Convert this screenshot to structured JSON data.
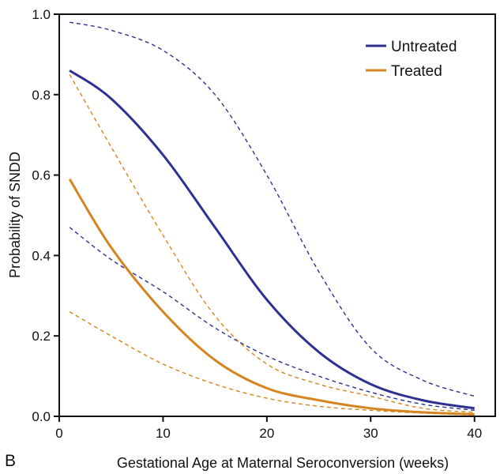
{
  "panel_label": "B",
  "chart_data": {
    "type": "line",
    "title": "",
    "xlabel": "Gestational Age at Maternal Seroconversion (weeks)",
    "ylabel": "Probability of SNDD",
    "xlim": [
      0,
      42
    ],
    "ylim": [
      0,
      1.0
    ],
    "xticks": [
      0,
      10,
      20,
      30,
      40
    ],
    "yticks": [
      0.0,
      0.2,
      0.4,
      0.6,
      0.8,
      1.0
    ],
    "xtick_labels": [
      "0",
      "10",
      "20",
      "30",
      "40"
    ],
    "ytick_labels": [
      "0.0",
      "0.2",
      "0.4",
      "0.6",
      "0.8",
      "1.0"
    ],
    "grid": false,
    "legend_position": "top-right",
    "x": [
      1,
      5,
      10,
      15,
      20,
      25,
      30,
      35,
      40
    ],
    "series": [
      {
        "name": "Untreated",
        "role": "estimate",
        "color": "#2e3192",
        "style": "solid",
        "values": [
          0.86,
          0.79,
          0.65,
          0.47,
          0.29,
          0.16,
          0.08,
          0.04,
          0.02
        ]
      },
      {
        "role": "upper-ci",
        "color": "#2e3192",
        "style": "dashed",
        "values": [
          0.98,
          0.96,
          0.91,
          0.8,
          0.6,
          0.36,
          0.17,
          0.09,
          0.05
        ]
      },
      {
        "role": "lower-ci",
        "color": "#2e3192",
        "style": "dashed",
        "values": [
          0.47,
          0.39,
          0.31,
          0.22,
          0.15,
          0.1,
          0.06,
          0.03,
          0.015
        ]
      },
      {
        "name": "Treated",
        "role": "estimate",
        "color": "#d4851f",
        "style": "solid",
        "values": [
          0.59,
          0.42,
          0.26,
          0.14,
          0.07,
          0.04,
          0.02,
          0.01,
          0.005
        ]
      },
      {
        "role": "upper-ci",
        "color": "#d4851f",
        "style": "dashed",
        "values": [
          0.85,
          0.67,
          0.45,
          0.25,
          0.13,
          0.08,
          0.05,
          0.02,
          0.01
        ]
      },
      {
        "role": "lower-ci",
        "color": "#d4851f",
        "style": "dashed",
        "values": [
          0.26,
          0.2,
          0.13,
          0.08,
          0.045,
          0.025,
          0.015,
          0.008,
          0.003
        ]
      }
    ]
  }
}
